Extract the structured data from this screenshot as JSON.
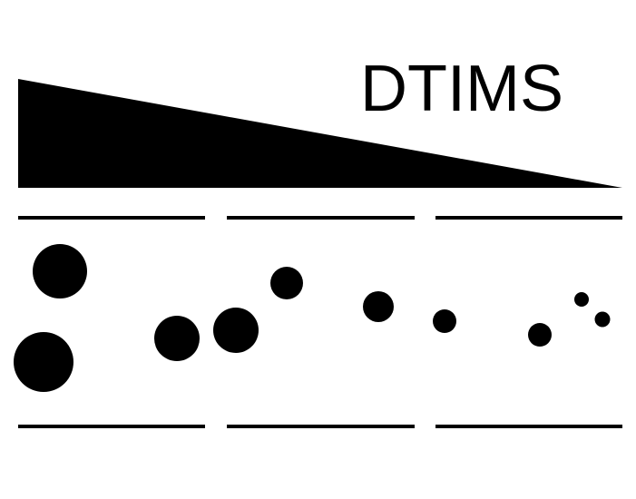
{
  "title": "DTIMS",
  "colors": {
    "foreground": "#000000",
    "background": "#ffffff"
  }
}
